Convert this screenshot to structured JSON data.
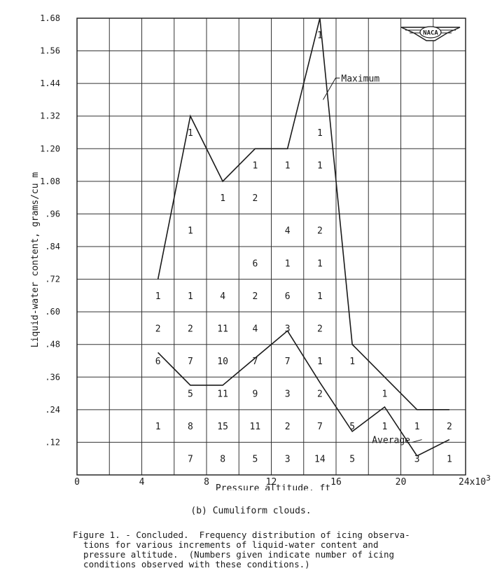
{
  "chart_data": {
    "type": "line",
    "xlabel": "Pressure altitude, ft",
    "ylabel": "Liquid-water content, grams/cu m",
    "xlim": [
      0,
      24
    ],
    "ylim": [
      0,
      1.68
    ],
    "x_ticks": [
      {
        "value": 0,
        "label": "0"
      },
      {
        "value": 4,
        "label": "4"
      },
      {
        "value": 8,
        "label": "8"
      },
      {
        "value": 12,
        "label": "12"
      },
      {
        "value": 16,
        "label": "16"
      },
      {
        "value": 20,
        "label": "20"
      },
      {
        "value": 24,
        "label": "24x10"
      }
    ],
    "x_tick_exponent": "3",
    "y_ticks": [
      {
        "value": 0.12,
        "label": ".12"
      },
      {
        "value": 0.24,
        "label": ".24"
      },
      {
        "value": 0.36,
        "label": ".36"
      },
      {
        "value": 0.48,
        "label": ".48"
      },
      {
        "value": 0.6,
        "label": ".60"
      },
      {
        "value": 0.72,
        "label": ".72"
      },
      {
        "value": 0.84,
        "label": ".84"
      },
      {
        "value": 0.96,
        "label": ".96"
      },
      {
        "value": 1.08,
        "label": "1.08"
      },
      {
        "value": 1.2,
        "label": "1.20"
      },
      {
        "value": 1.32,
        "label": "1.32"
      },
      {
        "value": 1.44,
        "label": "1.44"
      },
      {
        "value": 1.56,
        "label": "1.56"
      },
      {
        "value": 1.68,
        "label": "1.68"
      }
    ],
    "grid": true,
    "series": [
      {
        "name": "Maximum",
        "x": [
          5,
          7,
          9,
          11,
          13,
          15,
          17,
          19,
          21,
          23
        ],
        "y": [
          0.72,
          1.32,
          1.08,
          1.2,
          1.2,
          1.68,
          0.48,
          0.36,
          0.24,
          0.24
        ]
      },
      {
        "name": "Average",
        "x": [
          5,
          7,
          9,
          11,
          13,
          15,
          17,
          19,
          21,
          23
        ],
        "y": [
          0.45,
          0.33,
          0.33,
          0.43,
          0.53,
          0.34,
          0.16,
          0.25,
          0.07,
          0.13
        ]
      }
    ],
    "cell_counts": [
      {
        "x": 5,
        "y": 0.66,
        "label": "1"
      },
      {
        "x": 5,
        "y": 0.54,
        "label": "2"
      },
      {
        "x": 5,
        "y": 0.42,
        "label": "6"
      },
      {
        "x": 5,
        "y": 0.18,
        "label": "1"
      },
      {
        "x": 7,
        "y": 1.26,
        "label": "1"
      },
      {
        "x": 7,
        "y": 0.9,
        "label": "1"
      },
      {
        "x": 7,
        "y": 0.66,
        "label": "1"
      },
      {
        "x": 7,
        "y": 0.54,
        "label": "2"
      },
      {
        "x": 7,
        "y": 0.42,
        "label": "7"
      },
      {
        "x": 7,
        "y": 0.3,
        "label": "5"
      },
      {
        "x": 7,
        "y": 0.18,
        "label": "8"
      },
      {
        "x": 7,
        "y": 0.06,
        "label": "7"
      },
      {
        "x": 9,
        "y": 1.02,
        "label": "1"
      },
      {
        "x": 9,
        "y": 0.66,
        "label": "4"
      },
      {
        "x": 9,
        "y": 0.54,
        "label": "11"
      },
      {
        "x": 9,
        "y": 0.42,
        "label": "10"
      },
      {
        "x": 9,
        "y": 0.3,
        "label": "11"
      },
      {
        "x": 9,
        "y": 0.18,
        "label": "15"
      },
      {
        "x": 9,
        "y": 0.06,
        "label": "8"
      },
      {
        "x": 11,
        "y": 1.14,
        "label": "1"
      },
      {
        "x": 11,
        "y": 1.02,
        "label": "2"
      },
      {
        "x": 11,
        "y": 0.78,
        "label": "6"
      },
      {
        "x": 11,
        "y": 0.66,
        "label": "2"
      },
      {
        "x": 11,
        "y": 0.54,
        "label": "4"
      },
      {
        "x": 11,
        "y": 0.42,
        "label": "7"
      },
      {
        "x": 11,
        "y": 0.3,
        "label": "9"
      },
      {
        "x": 11,
        "y": 0.18,
        "label": "11"
      },
      {
        "x": 11,
        "y": 0.06,
        "label": "5"
      },
      {
        "x": 13,
        "y": 1.14,
        "label": "1"
      },
      {
        "x": 13,
        "y": 0.9,
        "label": "4"
      },
      {
        "x": 13,
        "y": 0.78,
        "label": "1"
      },
      {
        "x": 13,
        "y": 0.66,
        "label": "6"
      },
      {
        "x": 13,
        "y": 0.54,
        "label": "3"
      },
      {
        "x": 13,
        "y": 0.42,
        "label": "7"
      },
      {
        "x": 13,
        "y": 0.3,
        "label": "3"
      },
      {
        "x": 13,
        "y": 0.18,
        "label": "2"
      },
      {
        "x": 13,
        "y": 0.06,
        "label": "3"
      },
      {
        "x": 15,
        "y": 1.62,
        "label": "1"
      },
      {
        "x": 15,
        "y": 1.26,
        "label": "1"
      },
      {
        "x": 15,
        "y": 1.14,
        "label": "1"
      },
      {
        "x": 15,
        "y": 0.9,
        "label": "2"
      },
      {
        "x": 15,
        "y": 0.78,
        "label": "1"
      },
      {
        "x": 15,
        "y": 0.66,
        "label": "1"
      },
      {
        "x": 15,
        "y": 0.54,
        "label": "2"
      },
      {
        "x": 15,
        "y": 0.42,
        "label": "1"
      },
      {
        "x": 15,
        "y": 0.3,
        "label": "2"
      },
      {
        "x": 15,
        "y": 0.18,
        "label": "7"
      },
      {
        "x": 15,
        "y": 0.06,
        "label": "14"
      },
      {
        "x": 17,
        "y": 0.42,
        "label": "1"
      },
      {
        "x": 17,
        "y": 0.18,
        "label": "5"
      },
      {
        "x": 17,
        "y": 0.06,
        "label": "5"
      },
      {
        "x": 19,
        "y": 0.3,
        "label": "1"
      },
      {
        "x": 19,
        "y": 0.18,
        "label": "1"
      },
      {
        "x": 21,
        "y": 0.18,
        "label": "1"
      },
      {
        "x": 21,
        "y": 0.06,
        "label": "3"
      },
      {
        "x": 23,
        "y": 0.18,
        "label": "2"
      },
      {
        "x": 23,
        "y": 0.06,
        "label": "1"
      }
    ],
    "annotations": [
      {
        "text": "Maximum",
        "x": 15.8,
        "y": 1.46
      },
      {
        "text": "Average",
        "x": 19.4,
        "y": 0.13
      }
    ],
    "logo_text": "NACA"
  },
  "caption": "(b) Cumuliform clouds.",
  "figure_note": "Figure 1. - Concluded.  Frequency distribution of icing observa-\n  tions for various increments of liquid-water content and\n  pressure altitude.  (Numbers given indicate number of icing\n  conditions observed with these conditions.)"
}
